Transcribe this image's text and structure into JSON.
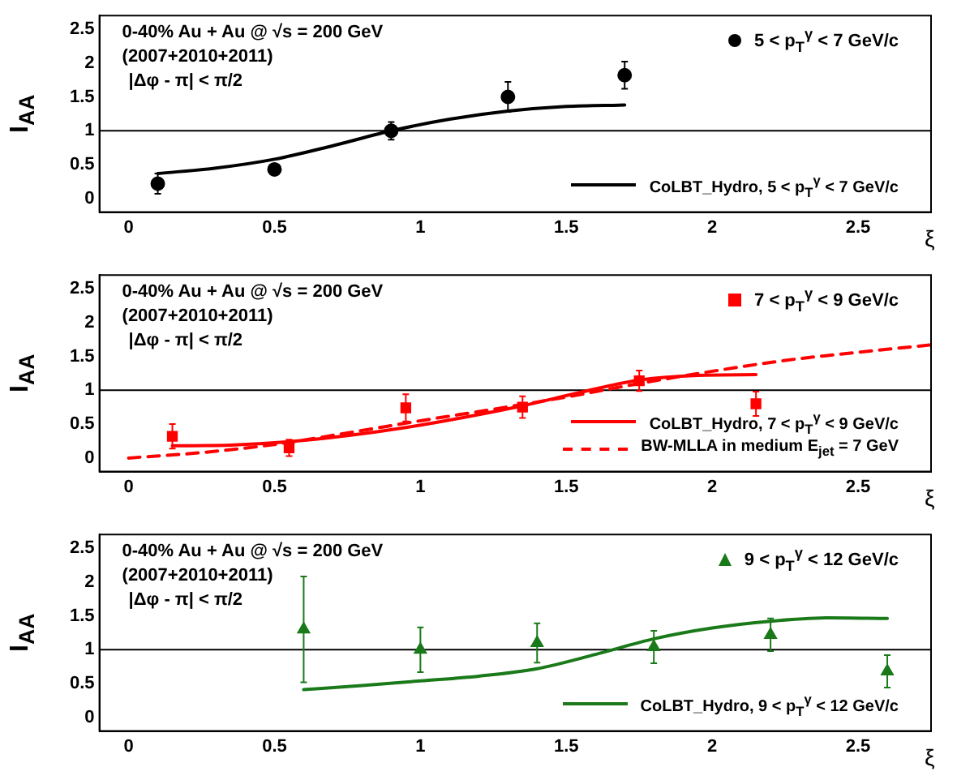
{
  "chart_data": [
    {
      "type": "scatter",
      "xlabel": "ξ",
      "ylabel": "I$_{AA}$",
      "xlim": [
        -0.1,
        2.75
      ],
      "ylim": [
        -0.2,
        2.7
      ],
      "xticks": [
        0,
        0.5,
        1,
        1.5,
        2,
        2.5
      ],
      "yticks": [
        0,
        0.5,
        1,
        1.5,
        2,
        2.5
      ],
      "grid": false,
      "legend": "right",
      "annotations": [
        "0-40% Au + Au @ √s = 200 GeV",
        "(2007+2010+2011)",
        "|Δφ - π| < π/2"
      ],
      "ref_lines": [
        {
          "axis": "y",
          "value": 1,
          "color": "#000000"
        }
      ],
      "series": [
        {
          "name": "5 < p$_{T}$$^{γ}$ < 7 GeV/c",
          "type": "scatter",
          "marker": "circle",
          "color": "#000000",
          "x": [
            0.1,
            0.5,
            0.9,
            1.3,
            1.7
          ],
          "values": [
            0.22,
            0.43,
            1.0,
            1.5,
            1.82
          ],
          "errors": [
            0.15,
            0.08,
            0.13,
            0.22,
            0.2
          ]
        },
        {
          "name": "CoLBT_Hydro, 5 < p$_{T}$$^{γ}$ < 7 GeV/c",
          "type": "line",
          "marker": "none",
          "line_style": "solid",
          "color": "#000000",
          "x": [
            0.1,
            0.3,
            0.5,
            0.7,
            0.9,
            1.1,
            1.3,
            1.5,
            1.7
          ],
          "values": [
            0.37,
            0.45,
            0.58,
            0.78,
            1.0,
            1.17,
            1.29,
            1.36,
            1.38
          ]
        }
      ]
    },
    {
      "type": "scatter",
      "xlabel": "ξ",
      "ylabel": "I$_{AA}$",
      "xlim": [
        -0.1,
        2.75
      ],
      "ylim": [
        -0.2,
        2.7
      ],
      "xticks": [
        0,
        0.5,
        1,
        1.5,
        2,
        2.5
      ],
      "yticks": [
        0,
        0.5,
        1,
        1.5,
        2,
        2.5
      ],
      "grid": false,
      "legend": "right",
      "annotations": [
        "0-40% Au + Au @ √s = 200 GeV",
        "(2007+2010+2011)",
        "|Δφ - π| < π/2"
      ],
      "ref_lines": [
        {
          "axis": "y",
          "value": 1,
          "color": "#000000"
        }
      ],
      "series": [
        {
          "name": "7 < p$_{T}$$^{γ}$ < 9 GeV/c",
          "type": "scatter",
          "marker": "square",
          "color": "#ff0000",
          "x": [
            0.15,
            0.55,
            0.95,
            1.35,
            1.75,
            2.15
          ],
          "values": [
            0.32,
            0.15,
            0.74,
            0.75,
            1.14,
            0.8
          ],
          "errors": [
            0.18,
            0.12,
            0.2,
            0.16,
            0.15,
            0.18
          ]
        },
        {
          "name": "CoLBT_Hydro, 7 < p$_{T}$$^{γ}$ < 9 GeV/c",
          "type": "line",
          "marker": "none",
          "line_style": "solid",
          "color": "#ff0000",
          "x": [
            0.15,
            0.35,
            0.55,
            0.75,
            0.95,
            1.15,
            1.35,
            1.55,
            1.75,
            1.95,
            2.15
          ],
          "values": [
            0.18,
            0.19,
            0.24,
            0.33,
            0.45,
            0.6,
            0.77,
            0.97,
            1.15,
            1.22,
            1.23
          ]
        },
        {
          "name": "BW-MLLA in medium E$_{jet}$ = 7 GeV",
          "type": "line",
          "marker": "none",
          "line_style": "dashed",
          "color": "#ff0000",
          "x": [
            0,
            0.25,
            0.5,
            0.75,
            1.0,
            1.25,
            1.5,
            1.75,
            2.0,
            2.25,
            2.5,
            2.75
          ],
          "values": [
            0,
            0.08,
            0.2,
            0.37,
            0.55,
            0.72,
            0.9,
            1.1,
            1.28,
            1.44,
            1.56,
            1.67
          ]
        }
      ]
    },
    {
      "type": "scatter",
      "xlabel": "ξ",
      "ylabel": "I$_{AA}$",
      "xlim": [
        -0.1,
        2.75
      ],
      "ylim": [
        -0.2,
        2.7
      ],
      "xticks": [
        0,
        0.5,
        1,
        1.5,
        2,
        2.5
      ],
      "yticks": [
        0,
        0.5,
        1,
        1.5,
        2,
        2.5
      ],
      "grid": false,
      "legend": "right",
      "annotations": [
        "0-40% Au + Au @ √s = 200 GeV",
        "(2007+2010+2011)",
        "|Δφ - π| < π/2"
      ],
      "ref_lines": [
        {
          "axis": "y",
          "value": 1,
          "color": "#000000"
        }
      ],
      "series": [
        {
          "name": "9 < p$_{T}$$^{γ}$ < 12 GeV/c",
          "type": "scatter",
          "marker": "triangle",
          "color": "#1a7a1a",
          "x": [
            0.6,
            1.0,
            1.4,
            1.8,
            2.2,
            2.6
          ],
          "values": [
            1.3,
            1.0,
            1.1,
            1.04,
            1.22,
            0.68
          ],
          "errors": [
            0.78,
            0.33,
            0.29,
            0.24,
            0.24,
            0.24
          ]
        },
        {
          "name": "CoLBT_Hydro, 9 < p$_{T}$$^{γ}$ < 12 GeV/c",
          "type": "line",
          "marker": "none",
          "line_style": "solid",
          "color": "#1a7a1a",
          "x": [
            0.6,
            0.8,
            1.0,
            1.2,
            1.4,
            1.6,
            1.8,
            2.0,
            2.2,
            2.4,
            2.6
          ],
          "values": [
            0.41,
            0.47,
            0.54,
            0.61,
            0.72,
            0.93,
            1.16,
            1.32,
            1.42,
            1.47,
            1.46
          ]
        }
      ]
    }
  ]
}
